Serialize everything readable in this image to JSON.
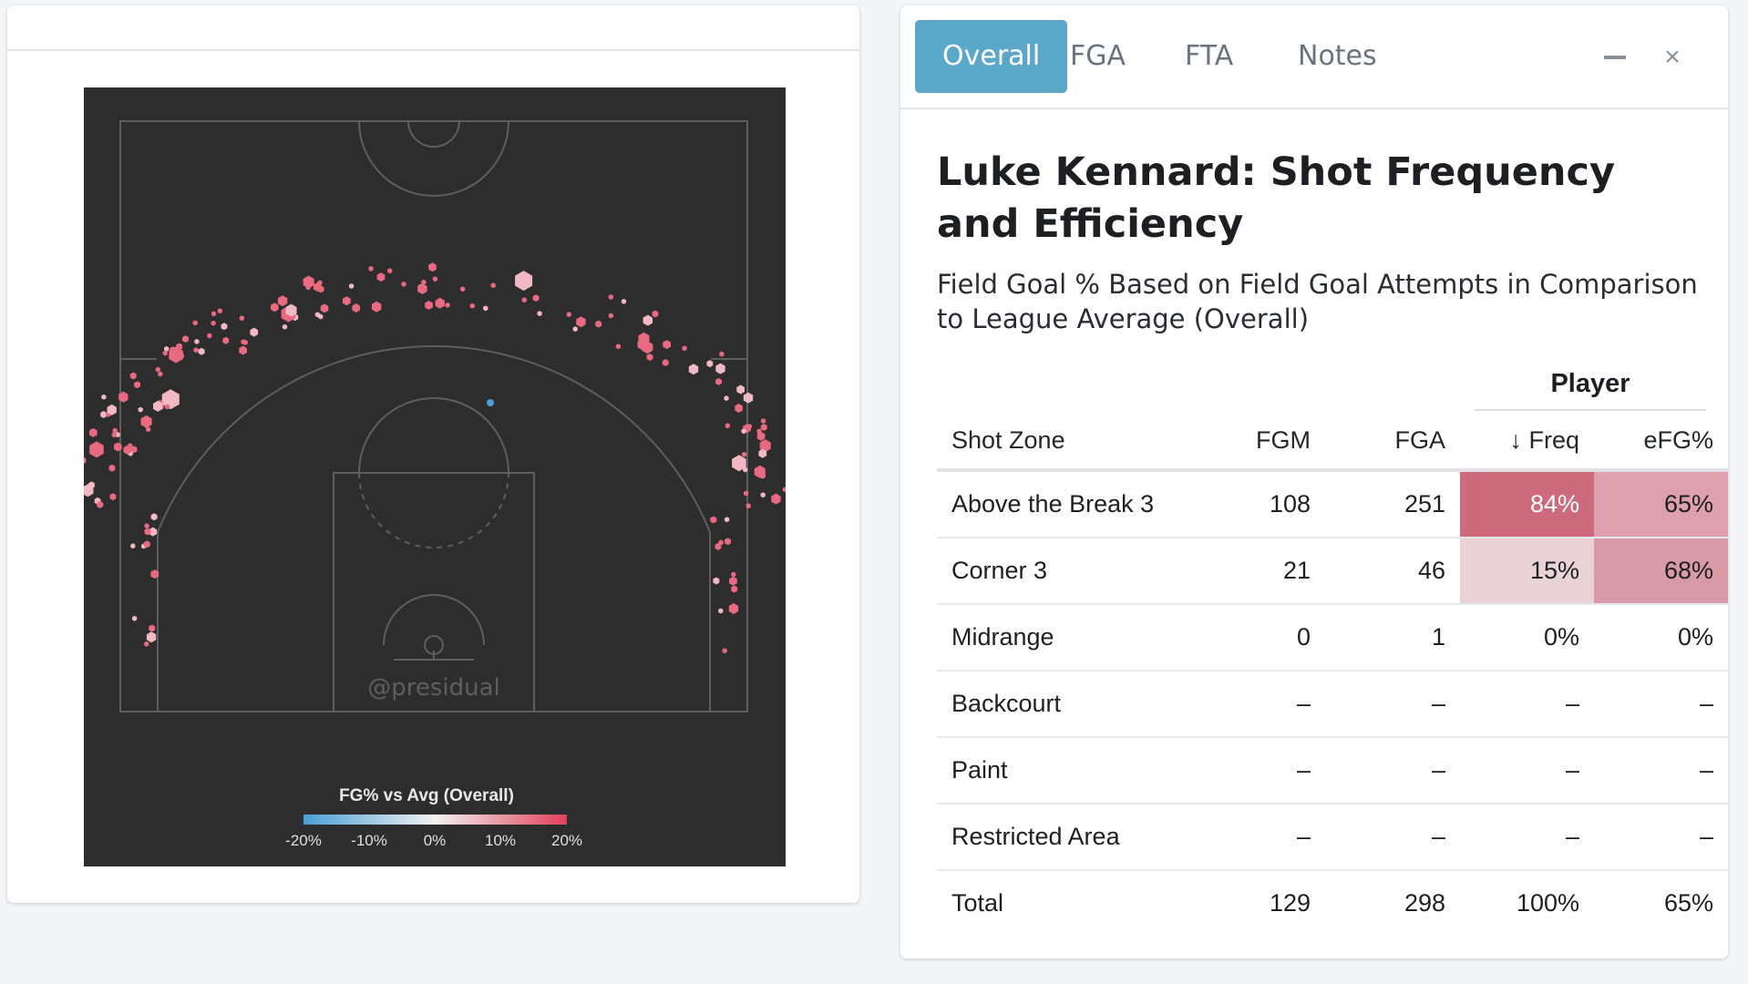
{
  "colors": {
    "court_bg": "#2d2d2d",
    "court_lines": "#5e5e5e",
    "hex_fill": "#e86a80",
    "hex_pale": "#f1b9c3",
    "hex_cold": "#4a9fd6",
    "tab_active": "#5ba7c9",
    "freq_high": "#cd6a7d",
    "efg_mid": "#dda0ac",
    "freq_low": "#e9d3d7"
  },
  "chart": {
    "watermark": "@presidual",
    "legend_title": "FG% vs Avg (Overall)",
    "legend_ticks": [
      "-20%",
      "-10%",
      "0%",
      "10%",
      "20%"
    ]
  },
  "tabs": [
    {
      "label": "Overall",
      "active": true
    },
    {
      "label": "FGA",
      "active": false
    },
    {
      "label": "FTA",
      "active": false
    },
    {
      "label": "Notes",
      "active": false
    }
  ],
  "icons": {
    "minimize": "minimize-icon",
    "close": "close-icon",
    "close_glyph": "×"
  },
  "report": {
    "title": "Luke Kennard: Shot Frequency and Efficiency",
    "subtitle": "Field Goal % Based on Field Goal Attempts in Comparison to League Average (Overall)",
    "group_header": "Player"
  },
  "table": {
    "headers": {
      "zone": "Shot Zone",
      "fgm": "FGM",
      "fga": "FGA",
      "freq": "↓ Freq",
      "efg": "eFG%"
    },
    "rows": [
      {
        "zone": "Above the Break 3",
        "fgm": "108",
        "fga": "251",
        "freq": "84%",
        "efg": "65%"
      },
      {
        "zone": "Corner 3",
        "fgm": "21",
        "fga": "46",
        "freq": "15%",
        "efg": "68%"
      },
      {
        "zone": "Midrange",
        "fgm": "0",
        "fga": "1",
        "freq": "0%",
        "efg": "0%"
      },
      {
        "zone": "Backcourt",
        "fgm": "–",
        "fga": "–",
        "freq": "–",
        "efg": "–"
      },
      {
        "zone": "Paint",
        "fgm": "–",
        "fga": "–",
        "freq": "–",
        "efg": "–"
      },
      {
        "zone": "Restricted Area",
        "fgm": "–",
        "fga": "–",
        "freq": "–",
        "efg": "–"
      }
    ],
    "total": {
      "zone": "Total",
      "fgm": "129",
      "fga": "298",
      "freq": "100%",
      "efg": "65%"
    }
  }
}
